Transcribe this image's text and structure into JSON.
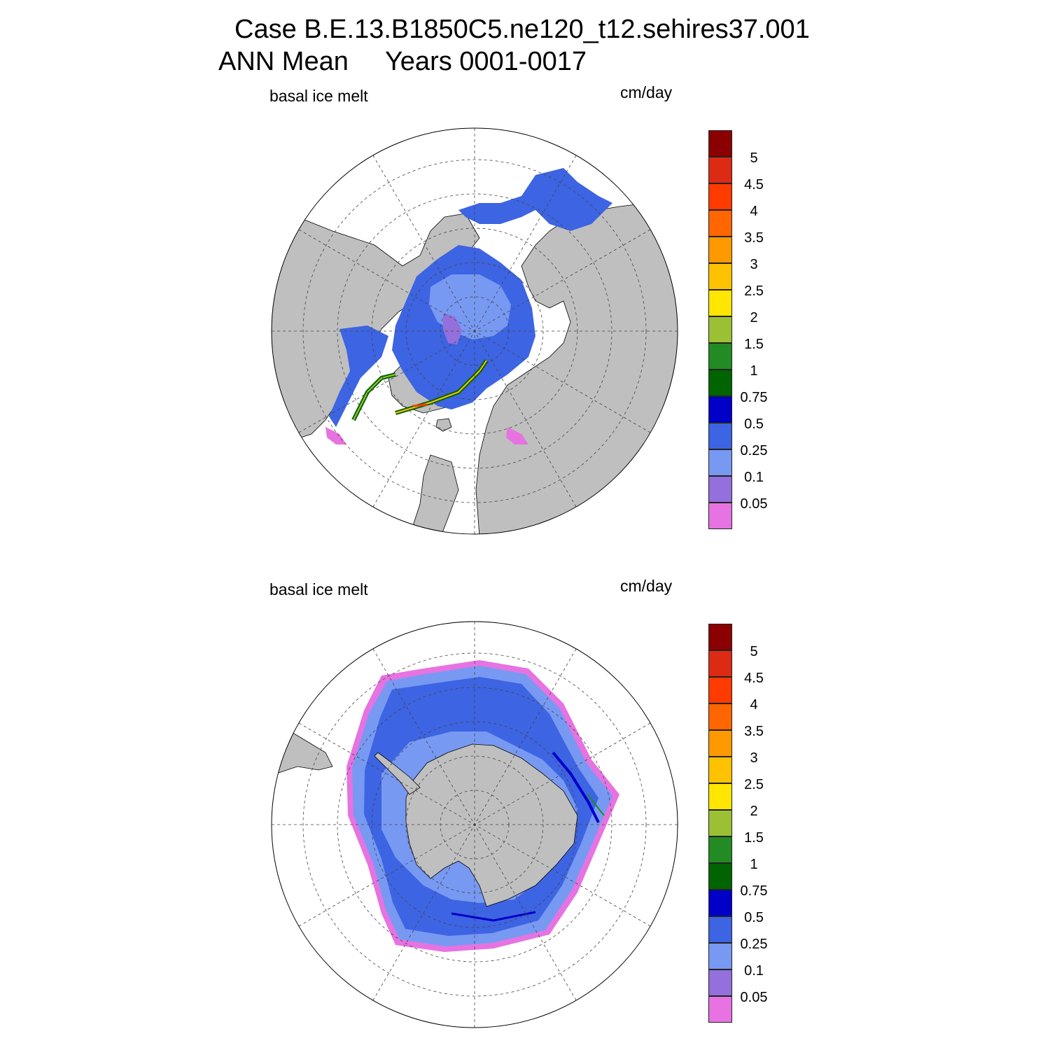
{
  "title": {
    "line1": "Case B.E.13.B1850C5.ne120_t12.sehires37.001",
    "line2": "ANN Mean     Years 0001-0017"
  },
  "panels": [
    {
      "hemisphere": "north",
      "variable_label": "basal ice melt",
      "units_label": "cm/day"
    },
    {
      "hemisphere": "south",
      "variable_label": "basal ice melt",
      "units_label": "cm/day"
    }
  ],
  "colorbar": {
    "levels": [
      "5",
      "4.5",
      "4",
      "3.5",
      "3",
      "2.5",
      "2",
      "1.5",
      "1",
      "0.75",
      "0.5",
      "0.25",
      "0.1",
      "0.05"
    ],
    "colors": [
      "#8b0000",
      "#dd2a15",
      "#ff3b00",
      "#ff6600",
      "#ff9900",
      "#ffc200",
      "#ffe600",
      "#9cc034",
      "#238b23",
      "#006400",
      "#0000c8",
      "#3d64e2",
      "#7799f2",
      "#9370db",
      "#e673e1"
    ]
  },
  "colors": {
    "land": "#bfbfbf",
    "ocean": "#ffffff",
    "ice_low": "#7799f2",
    "ice_mid": "#3d64e2",
    "ice_high": "#0000c8",
    "edge": "#e673e1"
  }
}
